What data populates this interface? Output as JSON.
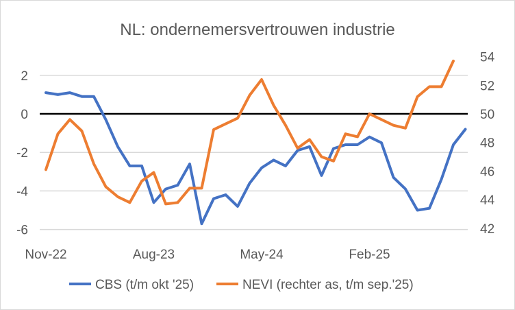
{
  "chart_data": {
    "type": "line",
    "title": "NL: ondernemersvertrouwen industrie",
    "x_tick_labels": [
      "Nov-22",
      "Aug-23",
      "May-24",
      "Feb-25"
    ],
    "x_tick_indices": [
      0,
      9,
      18,
      27
    ],
    "y_left": {
      "ticks": [
        2,
        0,
        -2,
        -4,
        -6
      ],
      "range": [
        -6,
        2.98
      ]
    },
    "y_right": {
      "ticks": [
        54,
        52,
        50,
        48,
        46,
        44,
        42
      ],
      "range": [
        42,
        54
      ]
    },
    "grid": true,
    "legend_position": "bottom",
    "series": [
      {
        "name": "CBS (t/m okt '25)",
        "axis": "left",
        "color": "#4472C4",
        "values": [
          1.1,
          1.0,
          1.1,
          0.9,
          0.9,
          -0.3,
          -1.7,
          -2.7,
          -2.7,
          -4.6,
          -3.9,
          -3.7,
          -2.6,
          -5.7,
          -4.4,
          -4.2,
          -4.8,
          -3.6,
          -2.8,
          -2.4,
          -2.7,
          -1.9,
          -1.7,
          -3.2,
          -1.8,
          -1.6,
          -1.6,
          -1.2,
          -1.5,
          -3.3,
          -3.9,
          -5.0,
          -4.9,
          -3.4,
          -1.6,
          -0.8
        ]
      },
      {
        "name": "NEVI (rechter as, t/m sep.'25)",
        "axis": "right",
        "color": "#ED7D31",
        "values": [
          46.1,
          48.6,
          49.6,
          48.8,
          46.5,
          44.9,
          44.2,
          43.8,
          45.3,
          45.9,
          43.7,
          43.8,
          44.8,
          44.8,
          48.9,
          49.3,
          49.7,
          51.3,
          52.4,
          50.6,
          49.2,
          47.6,
          48.2,
          47.0,
          46.7,
          48.6,
          48.4,
          50.0,
          49.6,
          49.2,
          49.0,
          51.2,
          51.9,
          51.9,
          53.7
        ]
      }
    ]
  }
}
